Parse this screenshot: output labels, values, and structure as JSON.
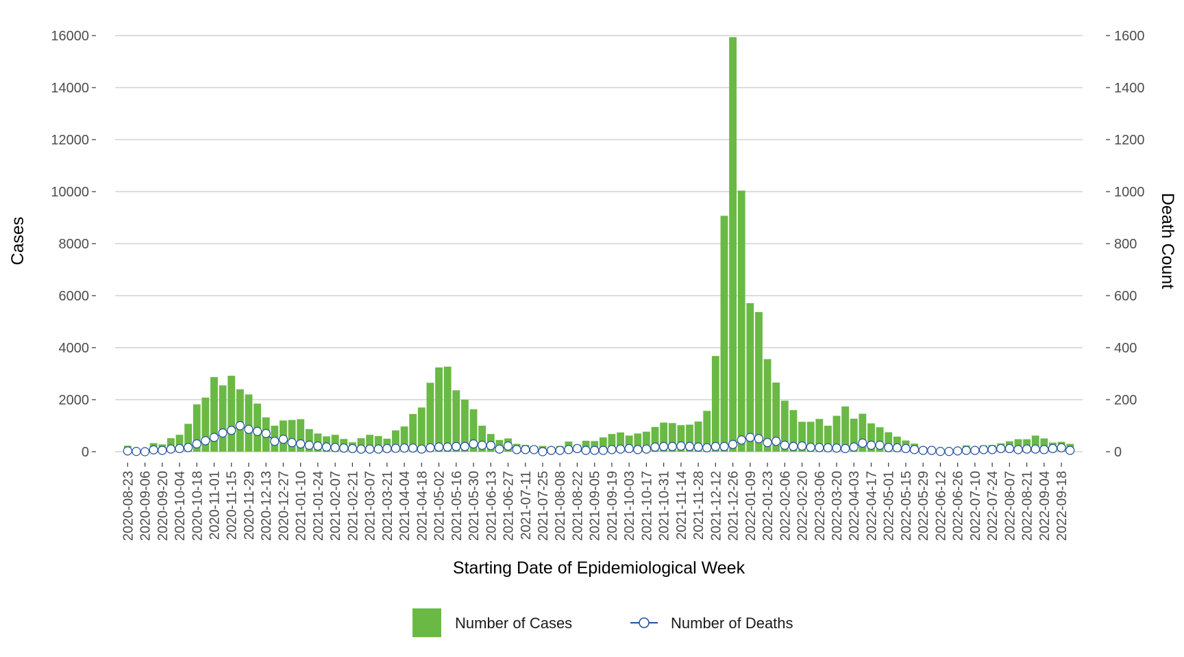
{
  "chart_data": {
    "type": "bar",
    "xlabel": "Starting Date of Epidemiological Week",
    "ylabel_left": "Cases",
    "ylabel_right": "Death Count",
    "ylim_left": [
      0,
      16000
    ],
    "ylim_right": [
      0,
      1600
    ],
    "yticks_left": [
      "0",
      "2000",
      "4000",
      "6000",
      "8000",
      "10000",
      "12000",
      "14000",
      "16000"
    ],
    "yticks_right": [
      "0",
      "200",
      "400",
      "600",
      "800",
      "1000",
      "1200",
      "1400",
      "1600"
    ],
    "grid": "horizontal",
    "legend_position": "bottom",
    "colors": {
      "cases": "#6ab945",
      "deaths_line": "#1f4e9c",
      "deaths_marker_fill": "#ffffff",
      "grid": "#c8c8c8"
    },
    "first_week": "2020-08-23",
    "week_tick_labels": [
      "2020-08-23",
      "2020-09-06",
      "2020-09-20",
      "2020-10-04",
      "2020-10-18",
      "2020-11-01",
      "2020-11-15",
      "2020-11-29",
      "2020-12-13",
      "2020-12-27",
      "2021-01-10",
      "2021-01-24",
      "2021-02-07",
      "2021-02-21",
      "2021-03-07",
      "2021-03-21",
      "2021-04-04",
      "2021-04-18",
      "2021-05-02",
      "2021-05-16",
      "2021-05-30",
      "2021-06-13",
      "2021-06-27",
      "2021-07-11",
      "2021-07-25",
      "2021-08-08",
      "2021-08-22",
      "2021-09-05",
      "2021-09-19",
      "2021-10-03",
      "2021-10-17",
      "2021-10-31",
      "2021-11-14",
      "2021-11-28",
      "2021-12-12",
      "2021-12-26",
      "2022-01-09",
      "2022-01-23",
      "2022-02-06",
      "2022-02-20",
      "2022-03-06",
      "2022-03-20",
      "2022-04-03",
      "2022-04-17",
      "2022-05-01",
      "2022-05-15",
      "2022-05-29",
      "2022-06-12",
      "2022-06-26",
      "2022-07-10",
      "2022-07-24",
      "2022-08-07",
      "2022-08-21",
      "2022-09-04",
      "2022-09-18"
    ],
    "series": [
      {
        "name": "Number of Cases",
        "type": "bar",
        "axis": "left",
        "values": [
          230,
          80,
          100,
          330,
          280,
          520,
          650,
          1070,
          1820,
          2080,
          2870,
          2550,
          2920,
          2400,
          2200,
          1850,
          1320,
          1000,
          1200,
          1220,
          1250,
          870,
          700,
          590,
          650,
          490,
          360,
          520,
          650,
          600,
          500,
          820,
          970,
          1450,
          1700,
          2650,
          3240,
          3270,
          2360,
          2000,
          1630,
          1000,
          680,
          450,
          510,
          300,
          260,
          210,
          220,
          180,
          220,
          390,
          270,
          420,
          410,
          550,
          680,
          740,
          620,
          700,
          770,
          950,
          1120,
          1100,
          1020,
          1040,
          1160,
          1570,
          3680,
          9070,
          15940,
          10040,
          5710,
          5370,
          3560,
          2660,
          1960,
          1600,
          1150,
          1150,
          1260,
          1000,
          1380,
          1740,
          1270,
          1460,
          1090,
          940,
          750,
          580,
          430,
          310,
          180,
          150,
          90,
          80,
          80,
          240,
          140,
          240,
          260,
          320,
          400,
          480,
          480,
          620,
          510,
          350,
          380,
          300
        ]
      },
      {
        "name": "Number of Deaths",
        "type": "line",
        "axis": "right",
        "values": [
          3,
          1,
          0,
          7,
          5,
          10,
          12,
          16,
          30,
          42,
          55,
          72,
          82,
          100,
          86,
          78,
          70,
          40,
          48,
          35,
          30,
          25,
          22,
          18,
          16,
          14,
          12,
          10,
          10,
          10,
          12,
          13,
          14,
          14,
          10,
          15,
          18,
          18,
          20,
          20,
          30,
          25,
          24,
          10,
          22,
          8,
          8,
          8,
          0,
          5,
          5,
          8,
          12,
          5,
          5,
          5,
          8,
          10,
          12,
          8,
          10,
          18,
          20,
          20,
          22,
          20,
          18,
          15,
          20,
          20,
          28,
          45,
          55,
          50,
          35,
          40,
          25,
          20,
          22,
          17,
          16,
          15,
          14,
          12,
          18,
          33,
          25,
          25,
          16,
          15,
          12,
          8,
          5,
          5,
          1,
          1,
          3,
          5,
          5,
          8,
          8,
          12,
          12,
          8,
          10,
          10,
          8,
          12,
          15,
          5
        ]
      }
    ]
  },
  "legend": {
    "cases_label": "Number of Cases",
    "deaths_label": "Number of Deaths"
  }
}
